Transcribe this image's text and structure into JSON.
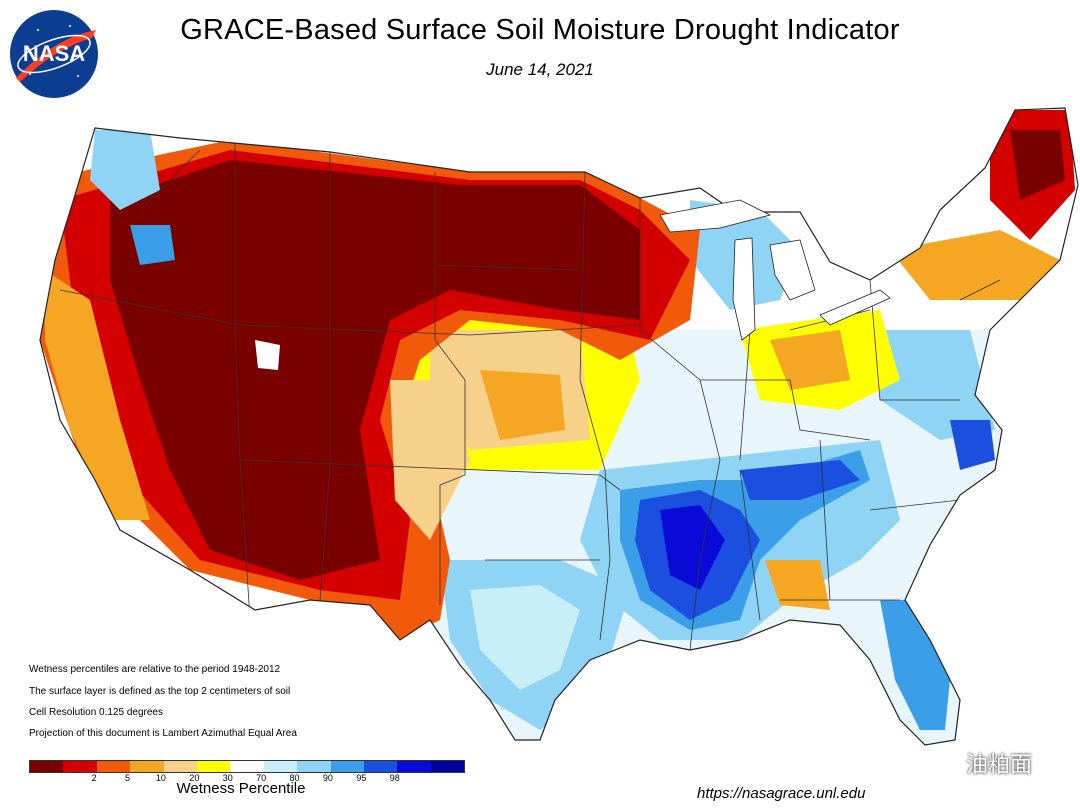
{
  "title": "GRACE-Based Surface Soil  Moisture Drought Indicator",
  "date": "June 14, 2021",
  "logo_text": "NASA",
  "notes": [
    "Wetness percentiles are relative to the period 1948-2012",
    "The surface layer is defined as the top 2 centimeters of soil",
    "Cell Resolution 0.125 degrees",
    "Projection of this document is Lambert Azimuthal Equal Area"
  ],
  "legend": {
    "title": "Wetness Percentile",
    "ticks": [
      "2",
      "5",
      "10",
      "20",
      "30",
      "70",
      "80",
      "90",
      "95",
      "98"
    ],
    "colors": [
      "#7a0000",
      "#d40000",
      "#f05a0a",
      "#f5a623",
      "#f7d08a",
      "#ffff00",
      "#ffffff",
      "#c8eef8",
      "#8fd3f5",
      "#3a9ee8",
      "#1a4fe0",
      "#0a0ad8",
      "#0000a0"
    ]
  },
  "source_url": "https://nasagrace.unl.edu",
  "watermark": "油粕面",
  "map": {
    "regions": [
      {
        "name": "west-drought",
        "category": "very-dry"
      },
      {
        "name": "northern-plains",
        "category": "very-dry"
      },
      {
        "name": "southeast-wet",
        "category": "very-wet"
      }
    ]
  }
}
